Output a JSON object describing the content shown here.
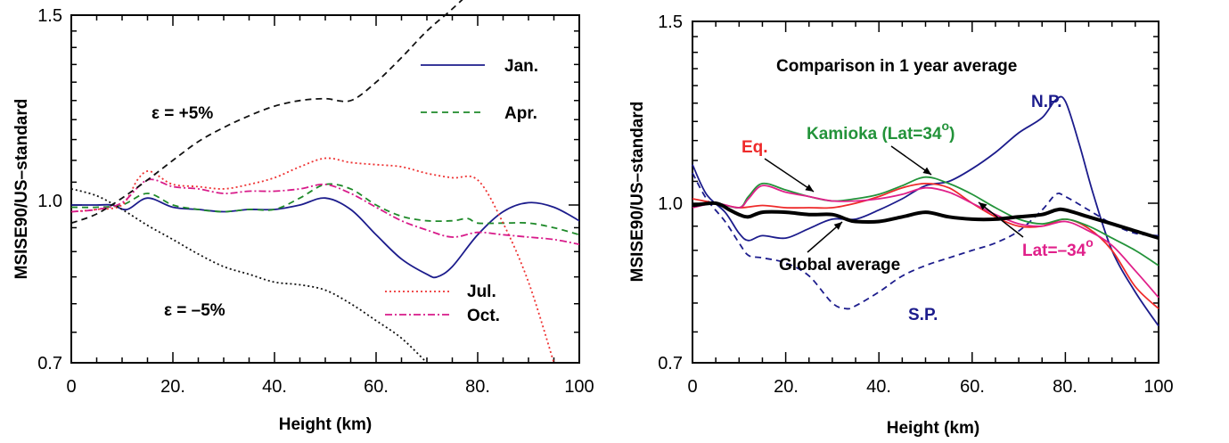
{
  "chart_data": [
    {
      "type": "line",
      "xlabel": "Height (km)",
      "ylabel": "MSISE90/US–standard",
      "xlim": [
        0,
        100
      ],
      "ylim": [
        0.7,
        1.5
      ],
      "log_y": true,
      "x_ticks": [
        "0",
        "20.",
        "40.",
        "60.",
        "80.",
        "100"
      ],
      "y_ticks": [
        "0.7",
        "1.0",
        "1.5"
      ],
      "legend_position": "right",
      "series": [
        {
          "name": "Jan.",
          "color": "#1c1c8c",
          "dash": "solid",
          "x": [
            0,
            5,
            8,
            11,
            15,
            20,
            25,
            30,
            35,
            40,
            45,
            50,
            55,
            60,
            65,
            70,
            72,
            75,
            80,
            85,
            90,
            95,
            100
          ],
          "y": [
            1.0,
            1.0,
            1.0,
            0.99,
            1.015,
            0.995,
            0.99,
            0.985,
            0.99,
            0.99,
            1.0,
            1.015,
            0.99,
            0.935,
            0.885,
            0.855,
            0.85,
            0.87,
            0.935,
            0.985,
            1.005,
            0.995,
            0.965
          ]
        },
        {
          "name": "Apr.",
          "color": "#1f8a2a",
          "dash": "dashed",
          "x": [
            0,
            5,
            10,
            15,
            20,
            25,
            30,
            35,
            40,
            45,
            50,
            55,
            60,
            65,
            70,
            75,
            78,
            80,
            85,
            90,
            95,
            100
          ],
          "y": [
            0.995,
            0.995,
            1.0,
            1.025,
            1.0,
            0.99,
            0.985,
            0.99,
            0.99,
            1.015,
            1.045,
            1.035,
            1.0,
            0.975,
            0.965,
            0.965,
            0.97,
            0.96,
            0.96,
            0.96,
            0.95,
            0.935
          ]
        },
        {
          "name": "Jul.",
          "color": "#ee3333",
          "dash": "dotted",
          "x": [
            0,
            5,
            10,
            13,
            15,
            17,
            20,
            25,
            30,
            35,
            40,
            45,
            50,
            55,
            60,
            65,
            70,
            75,
            80,
            85,
            90,
            95
          ],
          "y": [
            0.985,
            0.99,
            1.0,
            1.055,
            1.075,
            1.065,
            1.045,
            1.04,
            1.035,
            1.045,
            1.06,
            1.085,
            1.105,
            1.095,
            1.09,
            1.085,
            1.07,
            1.06,
            1.055,
            0.96,
            0.84,
            0.7
          ]
        },
        {
          "name": "Oct.",
          "color": "#d81b8a",
          "dash": "dashdot",
          "x": [
            0,
            5,
            10,
            15,
            20,
            25,
            30,
            35,
            40,
            45,
            50,
            55,
            60,
            65,
            70,
            75,
            80,
            85,
            90,
            95,
            100
          ],
          "y": [
            0.985,
            0.99,
            1.005,
            1.055,
            1.04,
            1.035,
            1.025,
            1.03,
            1.03,
            1.035,
            1.045,
            1.025,
            0.995,
            0.965,
            0.945,
            0.93,
            0.94,
            0.935,
            0.93,
            0.925,
            0.915
          ]
        },
        {
          "name": "",
          "color": "#111111",
          "dash": "dashed",
          "x": [
            0,
            5,
            10,
            15,
            20,
            25,
            30,
            35,
            40,
            45,
            50,
            55,
            60,
            65,
            70,
            75,
            80
          ],
          "y": [
            0.96,
            0.98,
            1.015,
            1.055,
            1.1,
            1.145,
            1.18,
            1.21,
            1.235,
            1.25,
            1.255,
            1.25,
            1.3,
            1.37,
            1.45,
            1.52,
            1.6
          ]
        },
        {
          "name": "",
          "color": "#111111",
          "dash": "dotted",
          "x": [
            0,
            5,
            10,
            15,
            20,
            25,
            30,
            35,
            40,
            45,
            50,
            55,
            60,
            65,
            70
          ],
          "y": [
            1.035,
            1.02,
            0.99,
            0.955,
            0.925,
            0.895,
            0.87,
            0.855,
            0.84,
            0.835,
            0.825,
            0.8,
            0.77,
            0.74,
            0.7
          ]
        }
      ],
      "annotations": [
        {
          "text": "ε = +5%",
          "color": "#000000"
        },
        {
          "text": "ε = –5%",
          "color": "#000000"
        }
      ]
    },
    {
      "type": "line",
      "title": "Comparison in 1 year average",
      "xlabel": "Height (km)",
      "ylabel": "MSISE90/US–standard",
      "xlim": [
        0,
        100
      ],
      "ylim": [
        0.7,
        1.5
      ],
      "log_y": true,
      "x_ticks": [
        "0",
        "20.",
        "40.",
        "60.",
        "80.",
        "100"
      ],
      "y_ticks": [
        "0.7",
        "1.0",
        "1.5"
      ],
      "series": [
        {
          "name": "N.P.",
          "color": "#1c1c8c",
          "dash": "solid",
          "x": [
            0,
            3,
            7,
            10,
            12,
            15,
            20,
            25,
            30,
            35,
            40,
            45,
            50,
            55,
            60,
            65,
            70,
            75,
            78,
            80,
            83,
            86,
            90,
            95,
            100
          ],
          "y": [
            1.09,
            1.02,
            0.98,
            0.935,
            0.92,
            0.93,
            0.925,
            0.945,
            0.965,
            0.965,
            0.985,
            1.01,
            1.04,
            1.05,
            1.08,
            1.12,
            1.17,
            1.21,
            1.26,
            1.255,
            1.14,
            1.02,
            0.9,
            0.82,
            0.76
          ]
        },
        {
          "name": "S.P.",
          "color": "#1c1c8c",
          "dash": "dashed",
          "x": [
            0,
            3,
            7,
            10,
            12,
            15,
            20,
            25,
            30,
            33,
            35,
            40,
            45,
            50,
            55,
            60,
            65,
            70,
            75,
            78,
            80,
            85,
            90,
            95,
            100
          ],
          "y": [
            1.07,
            1.01,
            0.96,
            0.915,
            0.89,
            0.885,
            0.875,
            0.85,
            0.8,
            0.79,
            0.795,
            0.82,
            0.85,
            0.87,
            0.885,
            0.9,
            0.915,
            0.94,
            0.985,
            1.02,
            1.015,
            0.985,
            0.955,
            0.935,
            0.93
          ]
        },
        {
          "name": "Eq.",
          "color": "#ee2a2a",
          "dash": "solid",
          "x": [
            0,
            5,
            10,
            15,
            20,
            25,
            30,
            35,
            40,
            45,
            50,
            55,
            60,
            65,
            70,
            75,
            80,
            85,
            90,
            95,
            100
          ],
          "y": [
            1.01,
            1.0,
            0.99,
            0.995,
            0.99,
            0.99,
            0.99,
            1.0,
            1.015,
            1.035,
            1.045,
            1.035,
            1.0,
            0.97,
            0.95,
            0.95,
            0.965,
            0.945,
            0.9,
            0.83,
            0.79
          ]
        },
        {
          "name": "Kamioka (Lat=34°)",
          "color": "#23933a",
          "dash": "solid",
          "x": [
            0,
            5,
            10,
            12,
            15,
            20,
            25,
            30,
            35,
            40,
            45,
            50,
            55,
            60,
            65,
            70,
            75,
            80,
            85,
            90,
            95,
            100
          ],
          "y": [
            0.995,
            1.0,
            0.99,
            1.015,
            1.045,
            1.03,
            1.015,
            1.005,
            1.01,
            1.02,
            1.04,
            1.06,
            1.045,
            1.02,
            0.99,
            0.965,
            0.955,
            0.965,
            0.95,
            0.925,
            0.9,
            0.87
          ]
        },
        {
          "name": "Lat=−34°",
          "color": "#e0208a",
          "dash": "solid",
          "x": [
            0,
            5,
            10,
            12,
            15,
            20,
            25,
            30,
            35,
            40,
            45,
            50,
            55,
            60,
            65,
            70,
            75,
            80,
            85,
            90,
            95,
            100
          ],
          "y": [
            0.99,
            1.0,
            0.99,
            1.01,
            1.04,
            1.025,
            1.015,
            1.005,
            1.005,
            1.01,
            1.02,
            1.035,
            1.025,
            1.0,
            0.975,
            0.955,
            0.95,
            0.96,
            0.94,
            0.91,
            0.86,
            0.81
          ]
        },
        {
          "name": "Global average",
          "color": "#000000",
          "dash": "solid",
          "bold": true,
          "x": [
            0,
            5,
            8,
            10,
            12,
            15,
            20,
            25,
            30,
            33,
            35,
            40,
            45,
            50,
            55,
            60,
            65,
            70,
            75,
            78,
            80,
            85,
            90,
            95,
            100
          ],
          "y": [
            0.995,
            1.0,
            0.985,
            0.975,
            0.97,
            0.98,
            0.98,
            0.975,
            0.975,
            0.965,
            0.96,
            0.96,
            0.97,
            0.98,
            0.97,
            0.965,
            0.965,
            0.97,
            0.975,
            0.985,
            0.985,
            0.97,
            0.955,
            0.94,
            0.925
          ]
        }
      ],
      "labels": [
        {
          "text": "N.P.",
          "color": "#1c1c8c"
        },
        {
          "text": "S.P.",
          "color": "#1c1c8c"
        },
        {
          "text": "Eq.",
          "color": "#ee2a2a"
        },
        {
          "text": "Kamioka (Lat=34",
          "sup": "o",
          "close": ")",
          "color": "#23933a"
        },
        {
          "text": "Lat=–34",
          "sup": "o",
          "close": "",
          "color": "#e0208a"
        },
        {
          "text": "Global average",
          "color": "#000000"
        }
      ]
    }
  ]
}
